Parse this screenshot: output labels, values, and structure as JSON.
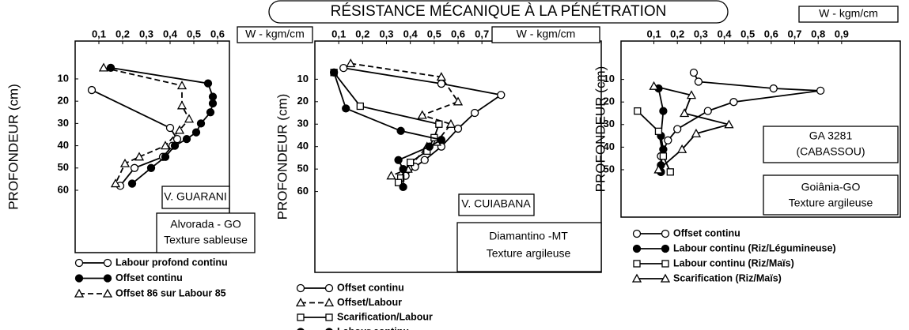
{
  "title": "RÉSISTANCE MÉCANIQUE À LA PÉNÉTRATION",
  "chart_data": [
    {
      "type": "line",
      "x_label": "W - kgm/cm",
      "y_label": "PROFONDEUR (cm)",
      "y_inverted": true,
      "xlim": [
        0,
        0.65
      ],
      "xticks": [
        {
          "value": 0.1,
          "label": "0,1"
        },
        {
          "value": 0.2,
          "label": "0,2"
        },
        {
          "value": 0.3,
          "label": "0,3"
        },
        {
          "value": 0.4,
          "label": "0,4"
        },
        {
          "value": 0.5,
          "label": "0,5"
        },
        {
          "value": 0.6,
          "label": "0,6"
        }
      ],
      "ylim": [
        -7,
        88
      ],
      "yticks": [
        10,
        20,
        30,
        40,
        50,
        60
      ],
      "annotations": [
        "V. GUARANI",
        "Alvorada - GO",
        "Texture sableuse"
      ],
      "series": [
        {
          "name": "Labour profond continu",
          "marker": "circle",
          "filled": false,
          "dashed": false,
          "color": "#000",
          "x": [
            0.07,
            0.4,
            0.43,
            0.41,
            0.37,
            0.25,
            0.19
          ],
          "y": [
            15,
            32,
            37,
            40,
            45,
            50,
            58
          ]
        },
        {
          "name": "Offset continu",
          "marker": "circle",
          "filled": true,
          "dashed": false,
          "color": "#000",
          "x": [
            0.15,
            0.56,
            0.58,
            0.58,
            0.57,
            0.53,
            0.51,
            0.47,
            0.42,
            0.38,
            0.32,
            0.24
          ],
          "y": [
            5,
            12,
            18,
            21,
            25,
            30,
            34,
            37,
            40,
            45,
            50,
            57
          ]
        },
        {
          "name": "Offset 86 sur Labour 85",
          "marker": "triangle",
          "filled": false,
          "dashed": true,
          "color": "#000",
          "x": [
            0.12,
            0.45,
            0.45,
            0.48,
            0.44,
            0.38,
            0.27,
            0.21,
            0.17
          ],
          "y": [
            5,
            13,
            22,
            28,
            33,
            40,
            45,
            48,
            57
          ]
        }
      ]
    },
    {
      "type": "line",
      "x_label": "W - kgm/cm",
      "y_label": "PROFONDEUR (cm)",
      "y_inverted": true,
      "xlim": [
        0,
        1.2
      ],
      "xticks": [
        {
          "value": 0.1,
          "label": "0,1"
        },
        {
          "value": 0.2,
          "label": "0,2"
        },
        {
          "value": 0.3,
          "label": "0,3"
        },
        {
          "value": 0.4,
          "label": "0,4"
        },
        {
          "value": 0.5,
          "label": "0,5"
        },
        {
          "value": 0.6,
          "label": "0,6"
        },
        {
          "value": 0.7,
          "label": "0,7"
        }
      ],
      "ylim": [
        -7,
        96
      ],
      "yticks": [
        10,
        20,
        30,
        40,
        50,
        60
      ],
      "annotations": [
        "V. CUIABANA",
        "Diamantino -MT",
        "Texture argileuse"
      ],
      "series": [
        {
          "name": "Offset continu",
          "marker": "circle",
          "filled": false,
          "dashed": false,
          "color": "#000",
          "x": [
            0.12,
            0.53,
            0.78,
            0.67,
            0.6,
            0.53,
            0.46,
            0.42,
            0.38
          ],
          "y": [
            5,
            12,
            17,
            25,
            32,
            40,
            46,
            49,
            53
          ]
        },
        {
          "name": "Offset/Labour",
          "marker": "triangle",
          "filled": false,
          "dashed": true,
          "color": "#000",
          "x": [
            0.15,
            0.53,
            0.6,
            0.45,
            0.57,
            0.51,
            0.47,
            0.39,
            0.32
          ],
          "y": [
            3,
            9,
            20,
            26,
            30,
            38,
            40,
            50,
            53
          ]
        },
        {
          "name": "Scarification/Labour",
          "marker": "square",
          "filled": false,
          "dashed": false,
          "color": "#000",
          "x": [
            0.08,
            0.19,
            0.52,
            0.5,
            0.47,
            0.4,
            0.36,
            0.35
          ],
          "y": [
            7,
            22,
            30,
            36,
            42,
            47,
            54,
            56
          ]
        },
        {
          "name": "Labour continu",
          "marker": "circle",
          "filled": true,
          "dashed": false,
          "color": "#000",
          "x": [
            0.08,
            0.13,
            0.36,
            0.53,
            0.48,
            0.35,
            0.37,
            0.37
          ],
          "y": [
            7,
            23,
            33,
            37,
            40,
            46,
            50,
            58
          ]
        }
      ]
    },
    {
      "type": "line",
      "x_label": "W - kgm/cm",
      "y_label": "PROFONDEUR (cm)",
      "y_inverted": true,
      "xlim": [
        -0.04,
        1.15
      ],
      "xticks": [
        {
          "value": 0.1,
          "label": "0,1"
        },
        {
          "value": 0.2,
          "label": "0,2"
        },
        {
          "value": 0.3,
          "label": "0,3"
        },
        {
          "value": 0.4,
          "label": "0,4"
        },
        {
          "value": 0.5,
          "label": "0,5"
        },
        {
          "value": 0.6,
          "label": "0,6"
        },
        {
          "value": 0.7,
          "label": "0,7"
        },
        {
          "value": 0.8,
          "label": "0,8"
        },
        {
          "value": 0.9,
          "label": "0,9"
        }
      ],
      "ylim": [
        -7,
        71
      ],
      "yticks": [
        10,
        20,
        30,
        40,
        50
      ],
      "annotations": [
        "GA 3281",
        "(CABASSOU)",
        "Goiânia-GO",
        "Texture argileuse"
      ],
      "series": [
        {
          "name": "Offset continu",
          "marker": "circle",
          "filled": false,
          "dashed": false,
          "color": "#000",
          "x": [
            0.27,
            0.29,
            0.61,
            0.81,
            0.44,
            0.33,
            0.2,
            0.16,
            0.13,
            0.13
          ],
          "y": [
            7,
            11,
            14,
            15,
            20,
            24,
            32,
            37,
            44,
            51
          ]
        },
        {
          "name": "Labour continu (Riz/Légumineuse)",
          "marker": "circle",
          "filled": true,
          "dashed": false,
          "color": "#000",
          "x": [
            0.12,
            0.14,
            0.13,
            0.14,
            0.13,
            0.13
          ],
          "y": [
            14,
            24,
            35,
            41,
            48,
            51
          ]
        },
        {
          "name": "Labour continu (Riz/Maïs)",
          "marker": "square",
          "filled": false,
          "dashed": false,
          "color": "#000",
          "x": [
            0.03,
            0.12,
            0.14,
            0.17
          ],
          "y": [
            24,
            33,
            44,
            51
          ]
        },
        {
          "name": "Scarification (Riz/Maïs)",
          "marker": "triangle",
          "filled": false,
          "dashed": false,
          "color": "#000",
          "x": [
            0.1,
            0.26,
            0.23,
            0.42,
            0.28,
            0.22,
            0.12
          ],
          "y": [
            13,
            17,
            25,
            30,
            34,
            41,
            50
          ]
        }
      ]
    }
  ]
}
